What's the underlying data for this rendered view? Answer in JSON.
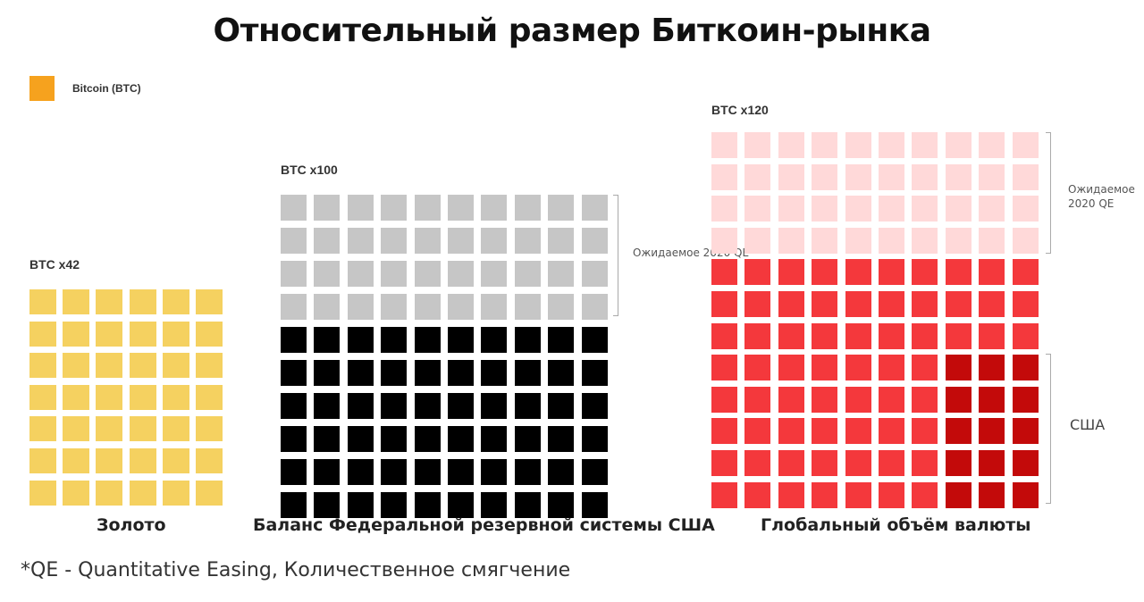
{
  "title": "Относительный размер Биткоин-рынка",
  "legend": {
    "label": "Bitcoin (BTC)",
    "color": "#f6a21e"
  },
  "footnote": "*QE - Quantitative Easing, Количественное смягчение",
  "colors": {
    "gold": "#f5d160",
    "fed_qe": "#c6c6c6",
    "fed_base": "#000000",
    "global_qe": "#ffd9d9",
    "global_base": "#f4383c",
    "global_usa": "#c30a0a"
  },
  "chart_data": {
    "type": "waffle",
    "unit": "Bitcoin (BTC)",
    "groups": [
      {
        "name": "Золото",
        "multiplier_label": "BTC x42",
        "multiplier": 42,
        "columns": 6,
        "segments": [
          {
            "name": "Золото",
            "count": 42,
            "color_key": "gold"
          }
        ]
      },
      {
        "name": "Баланс Федеральной резервной системы США",
        "multiplier_label": "BTC x100",
        "multiplier": 100,
        "columns": 10,
        "segments": [
          {
            "name": "Ожидаемое 2020 QE",
            "count": 40,
            "color_key": "fed_qe"
          },
          {
            "name": "",
            "count": 60,
            "color_key": "fed_base"
          }
        ],
        "annotation": "Ожидаемое 2020 QE"
      },
      {
        "name": "Глобальный объём валюты",
        "multiplier_label": "BTC x120",
        "multiplier": 120,
        "columns": 10,
        "segments": [
          {
            "name": "Ожидаемое 2020 QE",
            "count": 40,
            "color_key": "global_qe"
          },
          {
            "name": "",
            "count": 80,
            "color_key": "global_base"
          }
        ],
        "highlight": {
          "name": "США",
          "rows_from_bottom": 5,
          "columns_from_right": 3,
          "color_key": "global_usa"
        },
        "annotations": [
          "Ожидаемое 2020 QE",
          "США"
        ]
      }
    ]
  }
}
